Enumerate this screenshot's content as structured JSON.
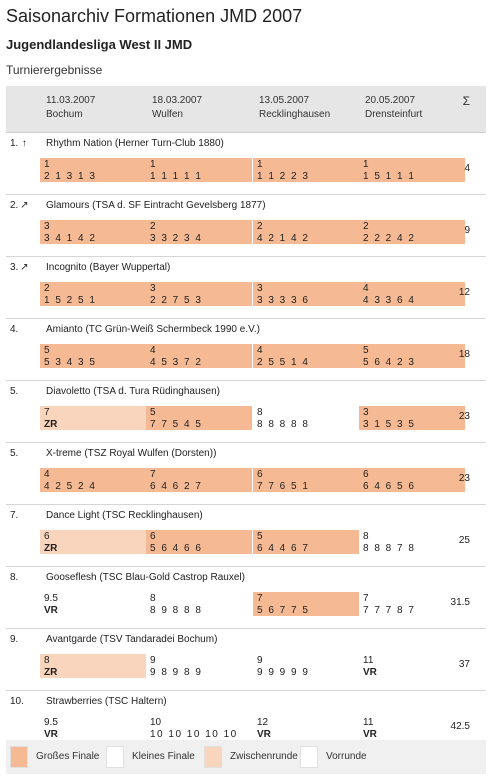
{
  "header": {
    "title": "Saisonarchiv Formationen JMD 2007",
    "league": "Jugendlandesliga West II JMD",
    "section": "Turnierergebnisse"
  },
  "columns": [
    {
      "date": "11.03.2007",
      "place": "Bochum"
    },
    {
      "date": "18.03.2007",
      "place": "Wulfen"
    },
    {
      "date": "13.05.2007",
      "place": "Recklinghausen"
    },
    {
      "date": "20.05.2007",
      "place": "Drensteinfurt"
    }
  ],
  "sum_label": "Σ",
  "colors": {
    "grosses_finale": "#f5b993",
    "zwischenrunde": "#f9d5bd",
    "kleines_finale": "#ffffff",
    "vorrunde": "#ffffff",
    "header_bg": "#e6e6e6"
  },
  "teams": [
    {
      "rank": "1.",
      "trend": "up-arrow-icon",
      "trend_glyph": "↑",
      "name": "Rhythm Nation (Herner Turn-Club 1880)",
      "total": "4",
      "results": [
        {
          "place": "1",
          "detail": "2 1 3 1 3",
          "round": "gf"
        },
        {
          "place": "1",
          "detail": "1 1 1 1 1",
          "round": "gf"
        },
        {
          "place": "1",
          "detail": "1 1 2 2 3",
          "round": "gf"
        },
        {
          "place": "1",
          "detail": "1 5 1 1 1",
          "round": "gf"
        }
      ]
    },
    {
      "rank": "2.",
      "trend": "up-right-arrow-icon",
      "trend_glyph": "↗",
      "name": "Glamours (TSA d. SF Eintracht Gevelsberg 1877)",
      "total": "9",
      "results": [
        {
          "place": "3",
          "detail": "3 4 1 4 2",
          "round": "gf"
        },
        {
          "place": "2",
          "detail": "3 3 2 3 4",
          "round": "gf"
        },
        {
          "place": "2",
          "detail": "4 2 1 4 2",
          "round": "gf"
        },
        {
          "place": "2",
          "detail": "2 2 2 4 2",
          "round": "gf"
        }
      ]
    },
    {
      "rank": "3.",
      "trend": "up-right-arrow-icon",
      "trend_glyph": "↗",
      "name": "Incognito (Bayer Wuppertal)",
      "total": "12",
      "results": [
        {
          "place": "2",
          "detail": "1 5 2 5 1",
          "round": "gf"
        },
        {
          "place": "3",
          "detail": "2 2 7 5 3",
          "round": "gf"
        },
        {
          "place": "3",
          "detail": "3 3 3 3 6",
          "round": "gf"
        },
        {
          "place": "4",
          "detail": "4 3 3 6 4",
          "round": "gf"
        }
      ]
    },
    {
      "rank": "4.",
      "trend": "",
      "trend_glyph": "",
      "name": "Amianto (TC Grün-Weiß Schermbeck 1990 e.V.)",
      "total": "18",
      "results": [
        {
          "place": "5",
          "detail": "5 3 4 3 5",
          "round": "gf"
        },
        {
          "place": "4",
          "detail": "4 5 3 7 2",
          "round": "gf"
        },
        {
          "place": "4",
          "detail": "2 5 5 1 4",
          "round": "gf"
        },
        {
          "place": "5",
          "detail": "5 6 4 2 3",
          "round": "gf"
        }
      ]
    },
    {
      "rank": "5.",
      "trend": "",
      "trend_glyph": "",
      "name": "Diavoletto (TSA d. Tura Rüdinghausen)",
      "total": "23",
      "results": [
        {
          "place": "7",
          "detail": "ZR",
          "round": "zr"
        },
        {
          "place": "5",
          "detail": "7 7 5 4 5",
          "round": "gf"
        },
        {
          "place": "8",
          "detail": "8 8 8 8 8",
          "round": "kf"
        },
        {
          "place": "3",
          "detail": "3 1 5 3 5",
          "round": "gf"
        }
      ]
    },
    {
      "rank": "5.",
      "trend": "",
      "trend_glyph": "",
      "name": "X-treme (TSZ Royal Wulfen (Dorsten))",
      "total": "23",
      "results": [
        {
          "place": "4",
          "detail": "4 2 5 2 4",
          "round": "gf"
        },
        {
          "place": "7",
          "detail": "6 4 6 2 7",
          "round": "gf"
        },
        {
          "place": "6",
          "detail": "7 7 6 5 1",
          "round": "gf"
        },
        {
          "place": "6",
          "detail": "6 4 6 5 6",
          "round": "gf"
        }
      ]
    },
    {
      "rank": "7.",
      "trend": "",
      "trend_glyph": "",
      "name": "Dance Light (TSC Recklinghausen)",
      "total": "25",
      "results": [
        {
          "place": "6",
          "detail": "ZR",
          "round": "zr"
        },
        {
          "place": "6",
          "detail": "5 6 4 6 6",
          "round": "gf"
        },
        {
          "place": "5",
          "detail": "6 4 4 6 7",
          "round": "gf"
        },
        {
          "place": "8",
          "detail": "8 8 8 7 8",
          "round": "kf"
        }
      ]
    },
    {
      "rank": "8.",
      "trend": "",
      "trend_glyph": "",
      "name": "Gooseflesh (TSC Blau-Gold Castrop Rauxel)",
      "total": "31.5",
      "results": [
        {
          "place": "9.5",
          "detail": "VR",
          "round": "vr"
        },
        {
          "place": "8",
          "detail": "8 9 8 8 8",
          "round": "kf"
        },
        {
          "place": "7",
          "detail": "5 6 7 7 5",
          "round": "gf"
        },
        {
          "place": "7",
          "detail": "7 7 7 8 7",
          "round": "kf"
        }
      ]
    },
    {
      "rank": "9.",
      "trend": "",
      "trend_glyph": "",
      "name": "Avantgarde (TSV Tandaradei Bochum)",
      "total": "37",
      "results": [
        {
          "place": "8",
          "detail": "ZR",
          "round": "zr"
        },
        {
          "place": "9",
          "detail": "9 8 9 8 9",
          "round": "kf"
        },
        {
          "place": "9",
          "detail": "9 9 9 9 9",
          "round": "kf"
        },
        {
          "place": "11",
          "detail": "VR",
          "round": "vr"
        }
      ]
    },
    {
      "rank": "10.",
      "trend": "",
      "trend_glyph": "",
      "name": "Strawberries (TSC Haltern)",
      "total": "42.5",
      "results": [
        {
          "place": "9.5",
          "detail": "VR",
          "round": "vr"
        },
        {
          "place": "10",
          "detail": "10 10 10 10 10",
          "round": "kf"
        },
        {
          "place": "12",
          "detail": "VR",
          "round": "vr"
        },
        {
          "place": "11",
          "detail": "VR",
          "round": "vr"
        }
      ]
    }
  ],
  "legend": [
    {
      "label": "Großes Finale",
      "color": "#f5b993"
    },
    {
      "label": "Kleines Finale",
      "color": "#ffffff"
    },
    {
      "label": "Zwischenrunde",
      "color": "#f9d5bd"
    },
    {
      "label": "Vorrunde",
      "color": "#ffffff"
    }
  ]
}
